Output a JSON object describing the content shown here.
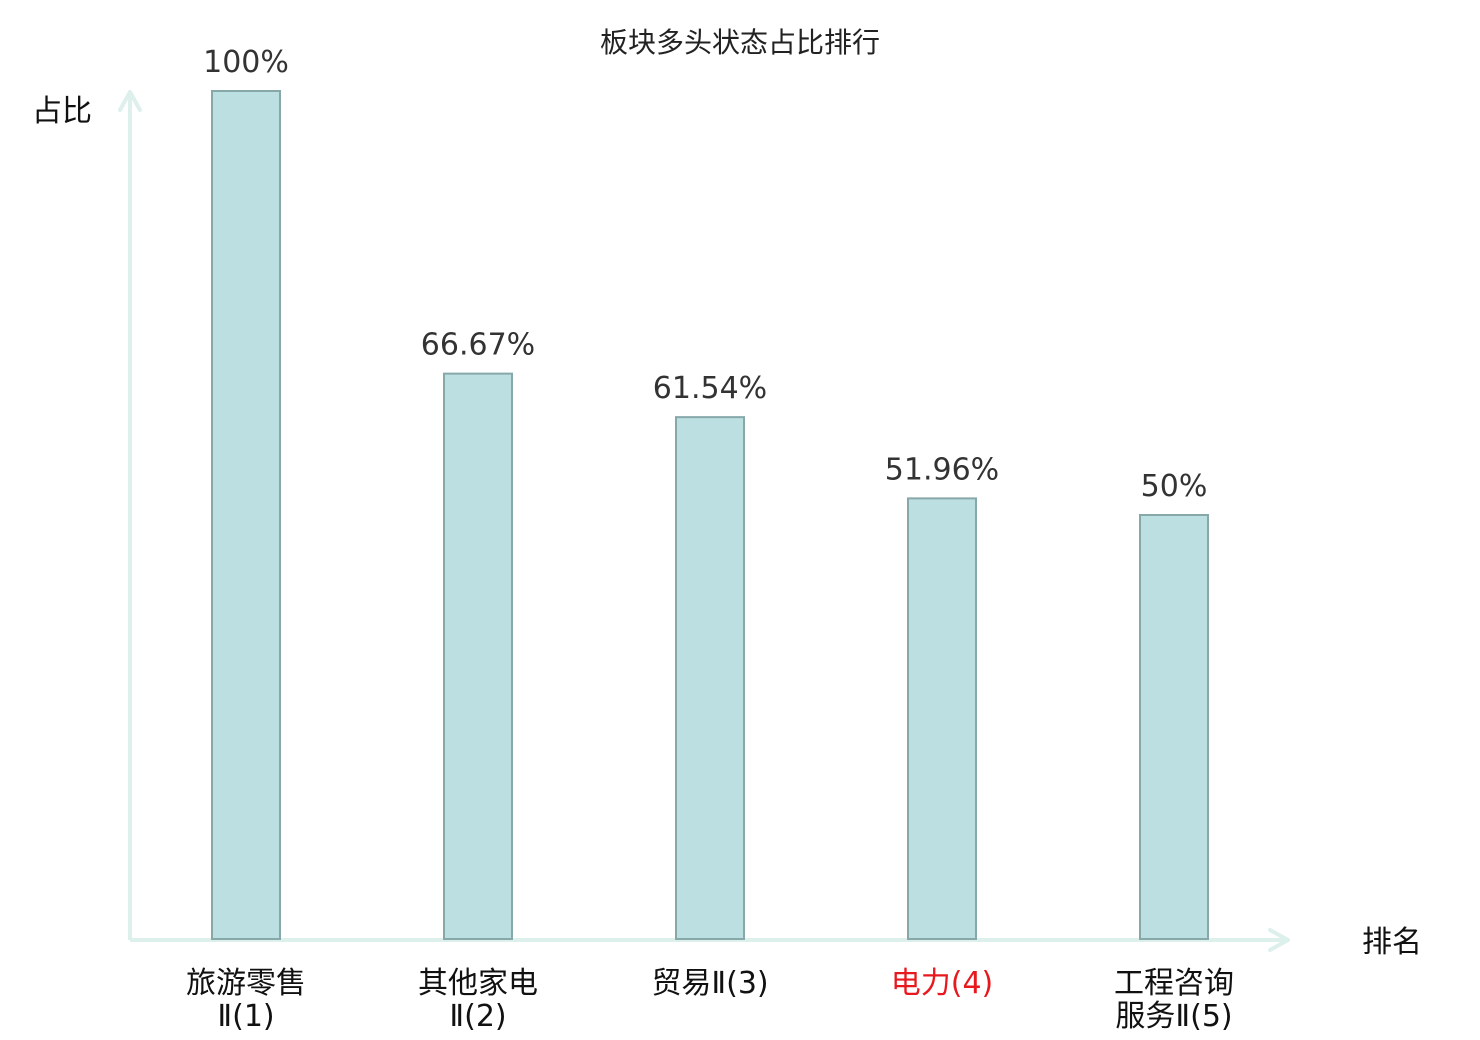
{
  "chart_data": {
    "type": "bar",
    "title": "板块多头状态占比排行",
    "ylabel": "占比",
    "xlabel": "排名",
    "ylim": [
      0,
      100
    ],
    "grid": false,
    "legend": "none",
    "categories": [
      {
        "lines": [
          "旅游零售",
          "Ⅱ(1)"
        ],
        "highlight": false
      },
      {
        "lines": [
          "其他家电",
          "Ⅱ(2)"
        ],
        "highlight": false
      },
      {
        "lines": [
          "贸易Ⅱ(3)"
        ],
        "highlight": false
      },
      {
        "lines": [
          "电力(4)"
        ],
        "highlight": true
      },
      {
        "lines": [
          "工程咨询",
          "服务Ⅱ(5)"
        ],
        "highlight": false
      }
    ],
    "values": [
      100,
      66.67,
      61.54,
      51.96,
      50
    ],
    "value_labels": [
      "100%",
      "66.67%",
      "61.54%",
      "51.96%",
      "50%"
    ],
    "colors": {
      "bar_fill": "#bce0e2",
      "bar_stroke": "#86a8a9",
      "axis": "#ddf0ec",
      "highlight_text": "#e8191e"
    }
  }
}
